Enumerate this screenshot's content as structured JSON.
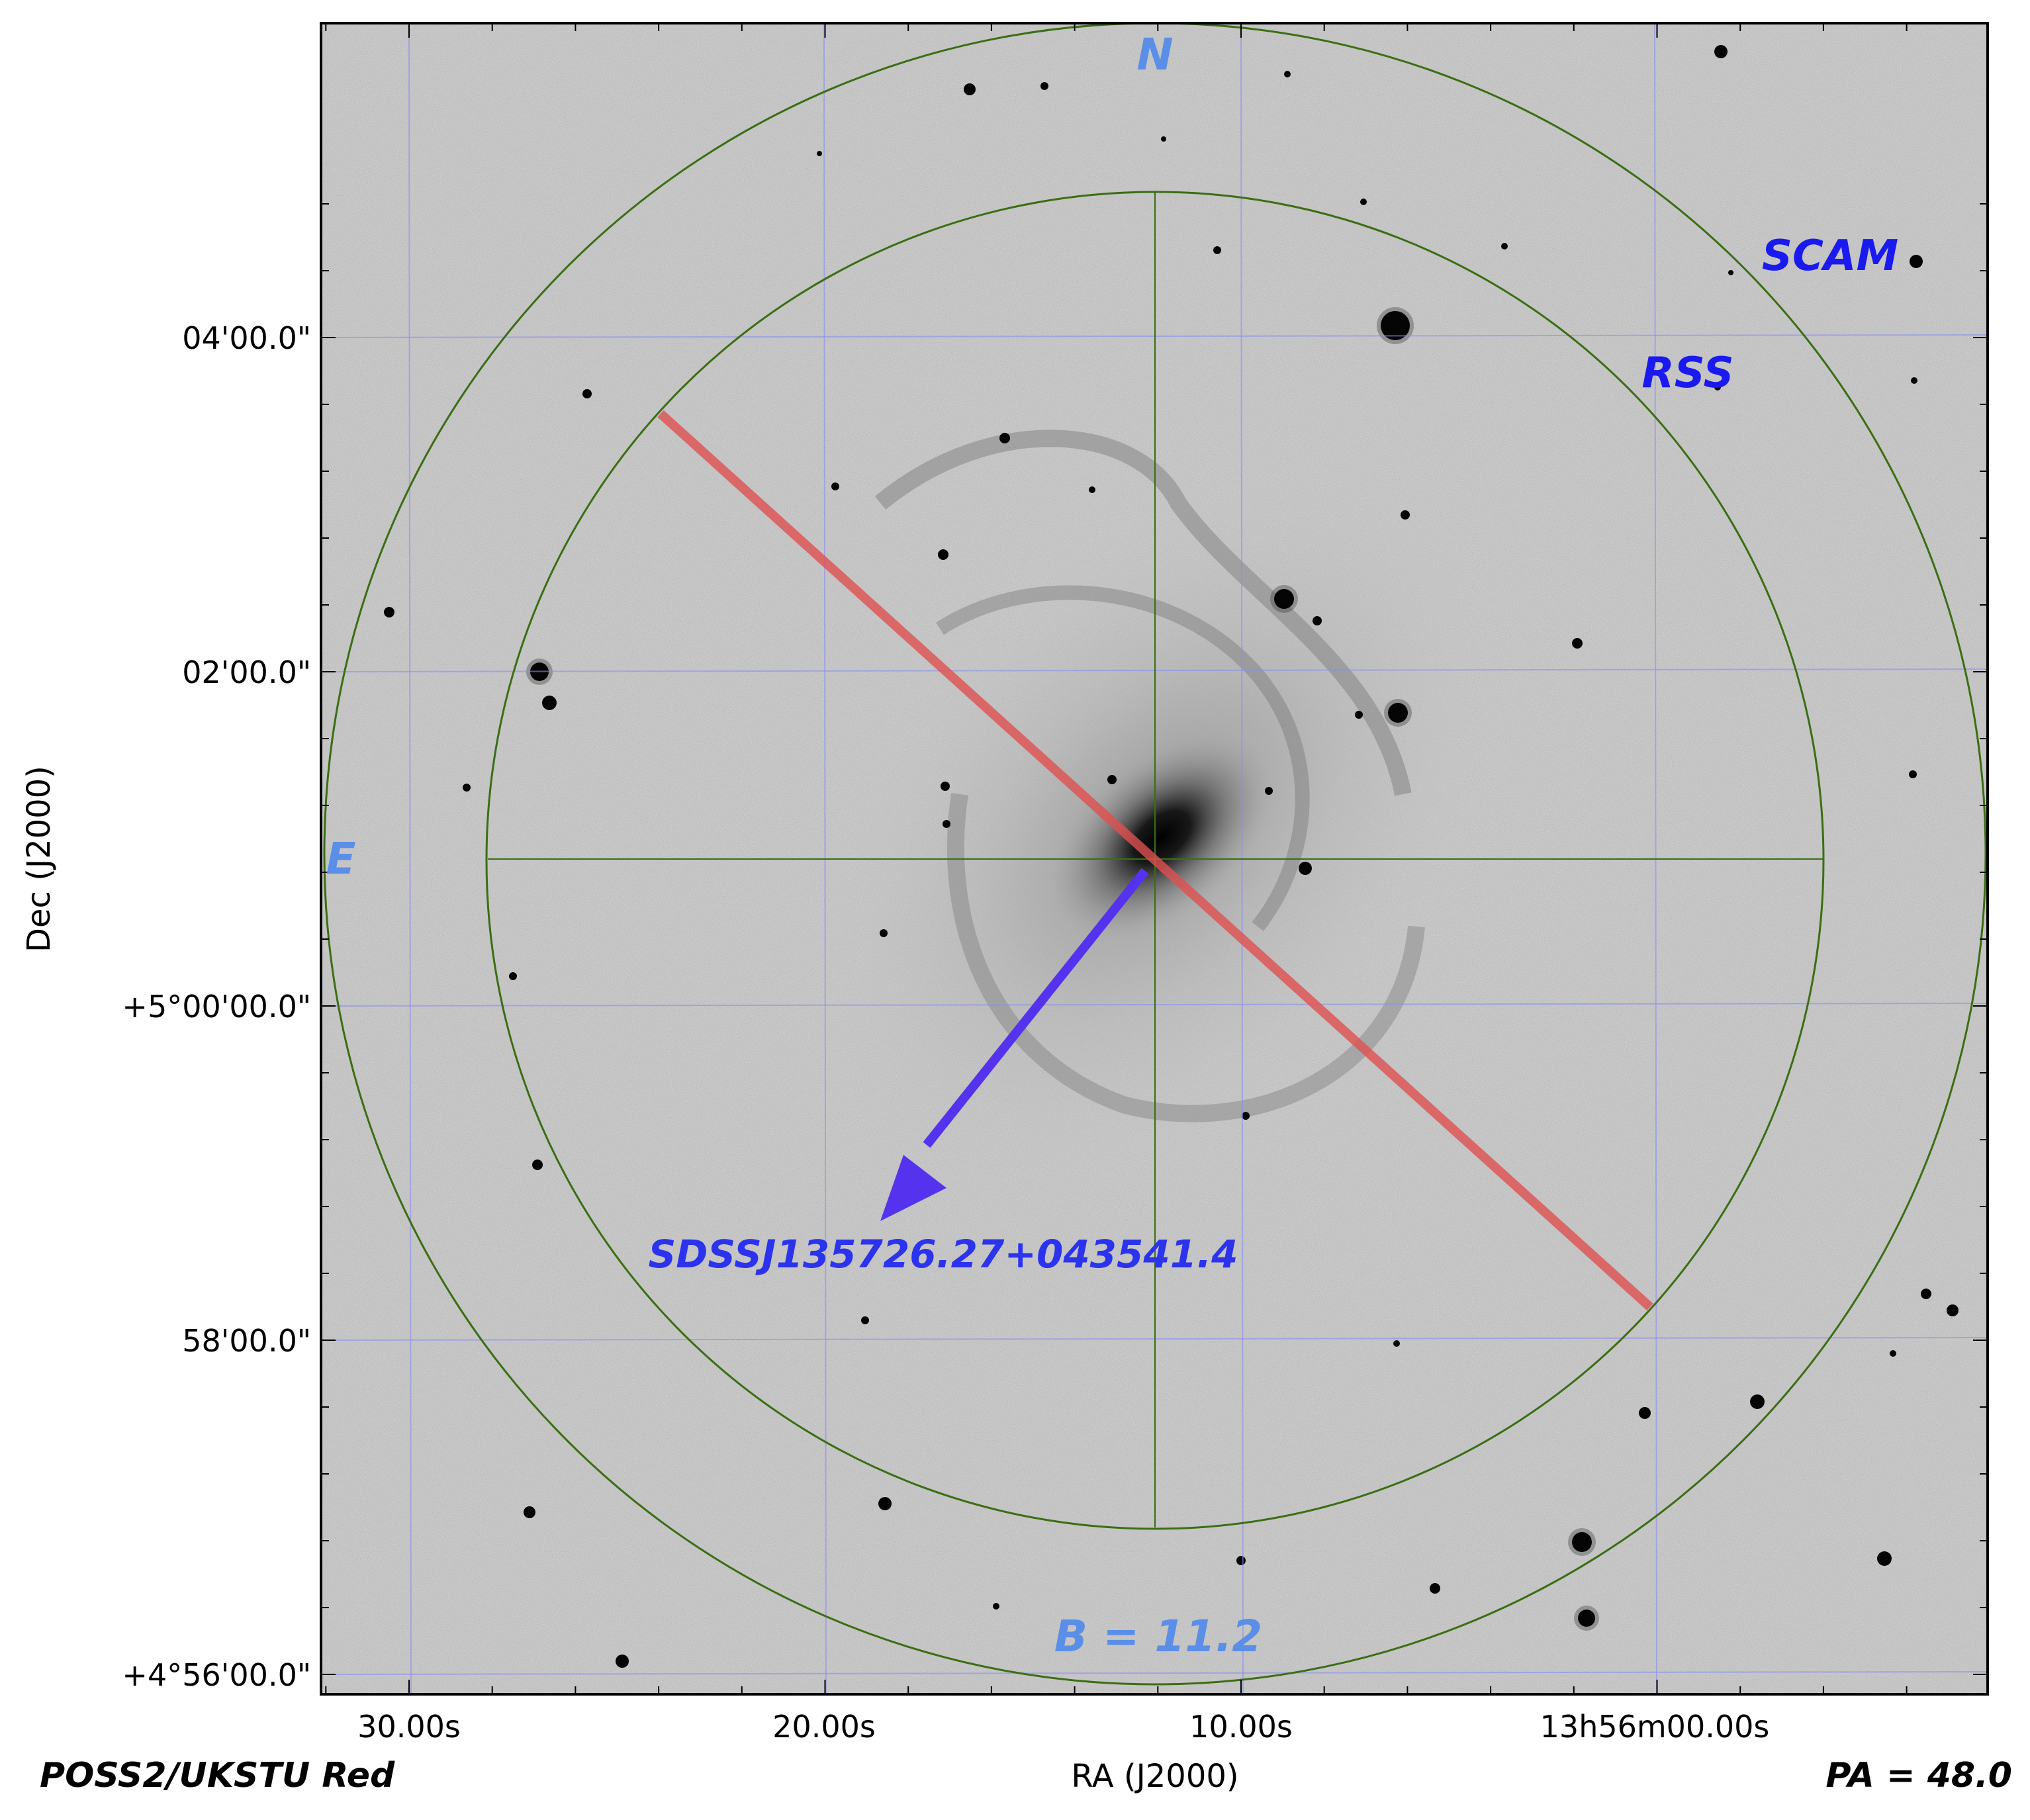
{
  "survey_label": "POSS2/UKSTU Red",
  "pa_label": "PA = 48.0",
  "x_axis": {
    "label": "RA (J2000)",
    "ticks": [
      "30.00s",
      "20.00s",
      "10.00s",
      "13h56m00.00s"
    ]
  },
  "y_axis": {
    "label": "Dec (J2000)",
    "ticks": [
      "04'00.0\"",
      "02'00.0\"",
      "+5°00'00.0\"",
      "58'00.0\"",
      "+4°56'00.0\""
    ]
  },
  "compass": {
    "north": "N",
    "east": "E"
  },
  "instruments": {
    "outer": "SCAM",
    "inner": "RSS"
  },
  "target_name": "SDSSJ135726.27+043541.4",
  "magnitude_label": "B = 11.2",
  "colors": {
    "grid": "#8a8ef0",
    "circles": "#3a6e14",
    "slit": "#e05050",
    "arrow": "#5533ee",
    "compass": "#5b8ee6",
    "instrument_labels": "#1a1af0",
    "target_label": "#2b33ee",
    "sky": "#d8d8d8"
  }
}
